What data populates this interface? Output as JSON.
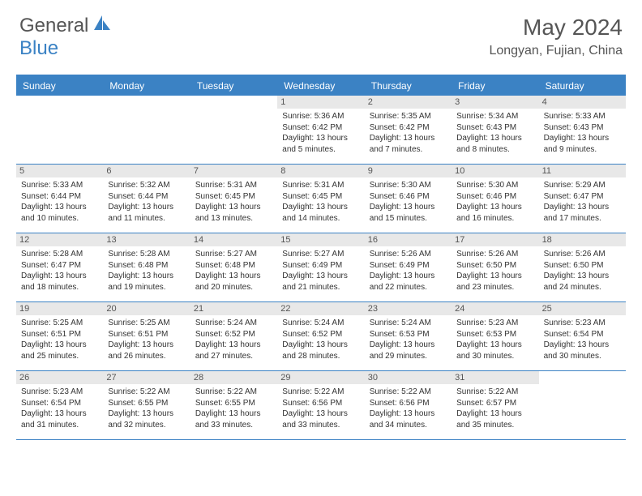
{
  "brand": {
    "part1": "General",
    "part2": "Blue"
  },
  "title": "May 2024",
  "location": "Longyan, Fujian, China",
  "colors": {
    "accent": "#3b82c4",
    "dayHeaderBg": "#e8e8e8",
    "text": "#333"
  },
  "dayNames": [
    "Sunday",
    "Monday",
    "Tuesday",
    "Wednesday",
    "Thursday",
    "Friday",
    "Saturday"
  ],
  "weeks": [
    [
      {
        "n": "",
        "empty": true
      },
      {
        "n": "",
        "empty": true
      },
      {
        "n": "",
        "empty": true
      },
      {
        "n": "1",
        "sr": "5:36 AM",
        "ss": "6:42 PM",
        "dl": "13 hours and 5 minutes."
      },
      {
        "n": "2",
        "sr": "5:35 AM",
        "ss": "6:42 PM",
        "dl": "13 hours and 7 minutes."
      },
      {
        "n": "3",
        "sr": "5:34 AM",
        "ss": "6:43 PM",
        "dl": "13 hours and 8 minutes."
      },
      {
        "n": "4",
        "sr": "5:33 AM",
        "ss": "6:43 PM",
        "dl": "13 hours and 9 minutes."
      }
    ],
    [
      {
        "n": "5",
        "sr": "5:33 AM",
        "ss": "6:44 PM",
        "dl": "13 hours and 10 minutes."
      },
      {
        "n": "6",
        "sr": "5:32 AM",
        "ss": "6:44 PM",
        "dl": "13 hours and 11 minutes."
      },
      {
        "n": "7",
        "sr": "5:31 AM",
        "ss": "6:45 PM",
        "dl": "13 hours and 13 minutes."
      },
      {
        "n": "8",
        "sr": "5:31 AM",
        "ss": "6:45 PM",
        "dl": "13 hours and 14 minutes."
      },
      {
        "n": "9",
        "sr": "5:30 AM",
        "ss": "6:46 PM",
        "dl": "13 hours and 15 minutes."
      },
      {
        "n": "10",
        "sr": "5:30 AM",
        "ss": "6:46 PM",
        "dl": "13 hours and 16 minutes."
      },
      {
        "n": "11",
        "sr": "5:29 AM",
        "ss": "6:47 PM",
        "dl": "13 hours and 17 minutes."
      }
    ],
    [
      {
        "n": "12",
        "sr": "5:28 AM",
        "ss": "6:47 PM",
        "dl": "13 hours and 18 minutes."
      },
      {
        "n": "13",
        "sr": "5:28 AM",
        "ss": "6:48 PM",
        "dl": "13 hours and 19 minutes."
      },
      {
        "n": "14",
        "sr": "5:27 AM",
        "ss": "6:48 PM",
        "dl": "13 hours and 20 minutes."
      },
      {
        "n": "15",
        "sr": "5:27 AM",
        "ss": "6:49 PM",
        "dl": "13 hours and 21 minutes."
      },
      {
        "n": "16",
        "sr": "5:26 AM",
        "ss": "6:49 PM",
        "dl": "13 hours and 22 minutes."
      },
      {
        "n": "17",
        "sr": "5:26 AM",
        "ss": "6:50 PM",
        "dl": "13 hours and 23 minutes."
      },
      {
        "n": "18",
        "sr": "5:26 AM",
        "ss": "6:50 PM",
        "dl": "13 hours and 24 minutes."
      }
    ],
    [
      {
        "n": "19",
        "sr": "5:25 AM",
        "ss": "6:51 PM",
        "dl": "13 hours and 25 minutes."
      },
      {
        "n": "20",
        "sr": "5:25 AM",
        "ss": "6:51 PM",
        "dl": "13 hours and 26 minutes."
      },
      {
        "n": "21",
        "sr": "5:24 AM",
        "ss": "6:52 PM",
        "dl": "13 hours and 27 minutes."
      },
      {
        "n": "22",
        "sr": "5:24 AM",
        "ss": "6:52 PM",
        "dl": "13 hours and 28 minutes."
      },
      {
        "n": "23",
        "sr": "5:24 AM",
        "ss": "6:53 PM",
        "dl": "13 hours and 29 minutes."
      },
      {
        "n": "24",
        "sr": "5:23 AM",
        "ss": "6:53 PM",
        "dl": "13 hours and 30 minutes."
      },
      {
        "n": "25",
        "sr": "5:23 AM",
        "ss": "6:54 PM",
        "dl": "13 hours and 30 minutes."
      }
    ],
    [
      {
        "n": "26",
        "sr": "5:23 AM",
        "ss": "6:54 PM",
        "dl": "13 hours and 31 minutes."
      },
      {
        "n": "27",
        "sr": "5:22 AM",
        "ss": "6:55 PM",
        "dl": "13 hours and 32 minutes."
      },
      {
        "n": "28",
        "sr": "5:22 AM",
        "ss": "6:55 PM",
        "dl": "13 hours and 33 minutes."
      },
      {
        "n": "29",
        "sr": "5:22 AM",
        "ss": "6:56 PM",
        "dl": "13 hours and 33 minutes."
      },
      {
        "n": "30",
        "sr": "5:22 AM",
        "ss": "6:56 PM",
        "dl": "13 hours and 34 minutes."
      },
      {
        "n": "31",
        "sr": "5:22 AM",
        "ss": "6:57 PM",
        "dl": "13 hours and 35 minutes."
      },
      {
        "n": "",
        "empty": true
      }
    ]
  ],
  "labels": {
    "sunrise": "Sunrise:",
    "sunset": "Sunset:",
    "daylight": "Daylight:"
  }
}
